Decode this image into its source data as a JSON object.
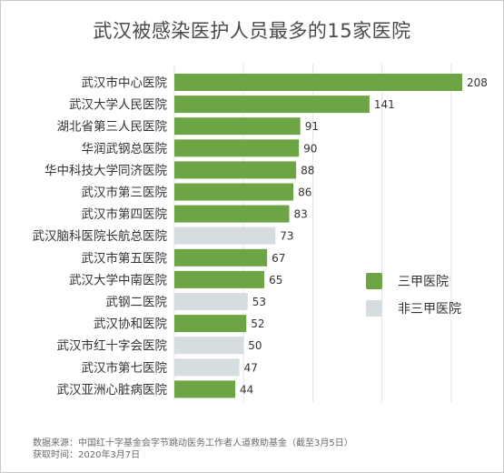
{
  "colors": {
    "tier3a": "#6da545",
    "other": "#d5dde0",
    "grid": "#e6e6e6"
  },
  "legend": [
    {
      "label": "三甲医院",
      "key": "tier3a"
    },
    {
      "label": "非三甲医院",
      "key": "other"
    }
  ],
  "footer": {
    "source": "数据来源：中国红十字基金会字节跳动医务工作者人道救助基金（截至3月5日）",
    "date": "获取时间：2020年3月7日"
  },
  "chart_data": {
    "type": "bar",
    "orientation": "horizontal",
    "title": "武汉被感染医护人员最多的15家医院",
    "xlim": [
      0,
      220
    ],
    "grid": true,
    "legend_position": "right",
    "categories": [
      "武汉市中心医院",
      "武汉大学人民医院",
      "湖北省第三人民医院",
      "华润武钢总医院",
      "华中科技大学同济医院",
      "武汉市第三医院",
      "武汉市第四医院",
      "武汉脑科医院长航总医院",
      "武汉市第五医院",
      "武汉大学中南医院",
      "武钢二医院",
      "武汉协和医院",
      "武汉市红十字会医院",
      "武汉市第七医院",
      "武汉亚洲心脏病医院"
    ],
    "values": [
      208,
      141,
      91,
      90,
      88,
      86,
      83,
      73,
      67,
      65,
      53,
      52,
      50,
      47,
      44
    ],
    "groups": [
      "tier3a",
      "tier3a",
      "tier3a",
      "tier3a",
      "tier3a",
      "tier3a",
      "tier3a",
      "other",
      "tier3a",
      "tier3a",
      "other",
      "tier3a",
      "other",
      "other",
      "tier3a"
    ]
  }
}
